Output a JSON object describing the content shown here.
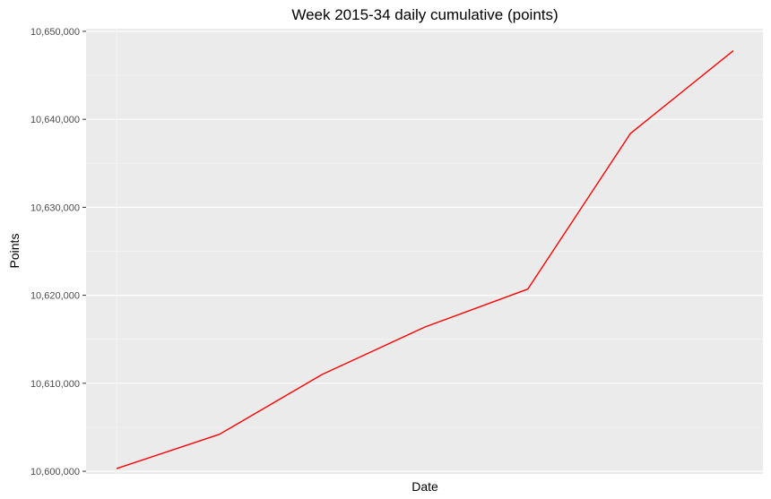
{
  "chart_data": {
    "type": "line",
    "title": "Week 2015-34 daily cumulative (points)",
    "xlabel": "Date",
    "ylabel": "Points",
    "ylim": [
      10599700,
      10650300
    ],
    "yticks": [
      10600000,
      10610000,
      10620000,
      10630000,
      10640000,
      10650000
    ],
    "ytick_labels": [
      "10,600,000",
      "10,610,000",
      "10,620,000",
      "10,630,000",
      "10,640,000",
      "10,650,000"
    ],
    "x": [
      1,
      2,
      3,
      4,
      5,
      6,
      7
    ],
    "series": [
      {
        "values": [
          10600300,
          10604200,
          10611000,
          10616400,
          10620700,
          10638400,
          10647800
        ]
      }
    ],
    "line_color": "#ff0000",
    "panel_background": "#ebebeb",
    "grid": true
  }
}
